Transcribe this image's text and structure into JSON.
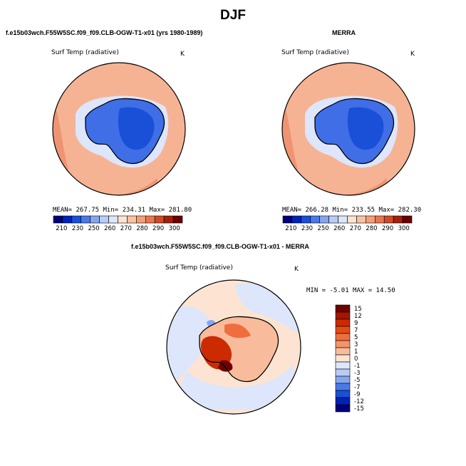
{
  "figure_title": "DJF",
  "panels": [
    {
      "subtitle": "f.e15b03wch.F55W5SC.f09_f09.CLB-OGW-T1-x01 (yrs 1980-1989)",
      "variable": "Surf Temp (radiative)",
      "units": "K",
      "stats": {
        "mean": "267.75",
        "min": "234.31",
        "max": "281.80"
      },
      "colorbar_labels": [
        "210",
        "230",
        "250",
        "260",
        "270",
        "280",
        "290",
        "300"
      ]
    },
    {
      "subtitle": "MERRA",
      "variable": "Surf Temp (radiative)",
      "units": "K",
      "stats": {
        "mean": "266.28",
        "min": "233.55",
        "max": "282.30"
      },
      "colorbar_labels": [
        "210",
        "230",
        "250",
        "260",
        "270",
        "280",
        "290",
        "300"
      ]
    }
  ],
  "difference": {
    "subtitle": "f.e15b03wch.F55W5SC.f09_f09.CLB-OGW-T1-x01 - MERRA",
    "variable": "Surf Temp (radiative)",
    "units": "K",
    "stats": {
      "min": "-5.01",
      "max": "14.50"
    },
    "colorbar_labels": [
      "15",
      "12",
      "9",
      "7",
      "5",
      "3",
      "1",
      "0",
      "-1",
      "-3",
      "-5",
      "-7",
      "-9",
      "-12",
      "-15"
    ]
  },
  "labels": {
    "mean": "MEAN=",
    "min": "Min=",
    "max": "Max=",
    "min_upper": "MIN =",
    "max_upper": "MAX ="
  },
  "colors": {
    "abs_scale": [
      "#00007a",
      "#0022b8",
      "#1a4fd8",
      "#4a7ae8",
      "#85a6ef",
      "#b9ccf5",
      "#dde6fa",
      "#fde4d2",
      "#f8c3a4",
      "#f2a07a",
      "#e87652",
      "#cf4a27",
      "#a3200d",
      "#6b0000"
    ],
    "diff_scale": [
      "#6e0000",
      "#a51500",
      "#cc2a00",
      "#e64a14",
      "#f06e3e",
      "#f5946a",
      "#f8bc9c",
      "#fde4d2",
      "#dde6fa",
      "#b9ccf5",
      "#85a6ef",
      "#4a7ae8",
      "#1a4fd8",
      "#0022b8",
      "#00007a"
    ],
    "ocean_abs": "#f6b394",
    "ocean_abs_warm": "#ef9472",
    "ice_abs": "#3f6ee6",
    "ice_abs_deep": "#1a4fd8",
    "coast": "#000000"
  }
}
